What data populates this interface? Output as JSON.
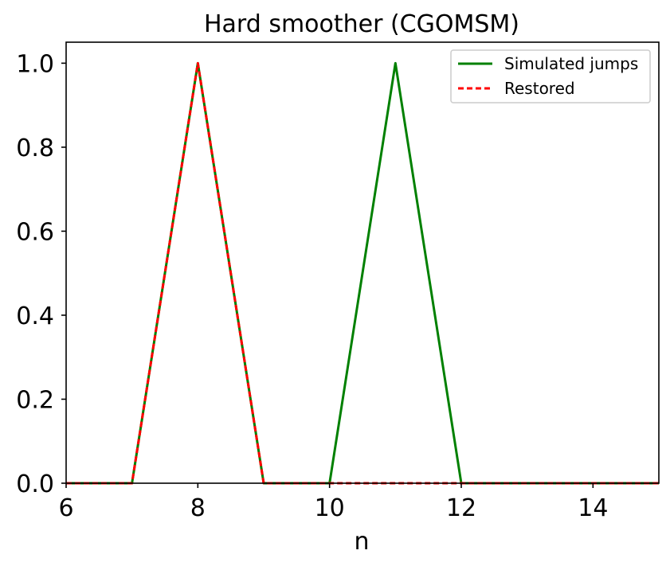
{
  "chart_data": {
    "type": "line",
    "title": "Hard smoother (CGOMSM)",
    "xlabel": "n",
    "ylabel": "",
    "xlim": [
      6,
      15
    ],
    "ylim": [
      0,
      1.05
    ],
    "xticks": [
      6,
      8,
      10,
      12,
      14
    ],
    "yticks": [
      0.0,
      0.2,
      0.4,
      0.6,
      0.8,
      1.0
    ],
    "xtick_labels": [
      "6",
      "8",
      "10",
      "12",
      "14"
    ],
    "ytick_labels": [
      "0.0",
      "0.2",
      "0.4",
      "0.6",
      "0.8",
      "1.0"
    ],
    "grid": false,
    "legend_position": "top-right",
    "x": [
      6,
      7,
      8,
      9,
      10,
      11,
      12,
      13,
      14,
      15
    ],
    "series": [
      {
        "name": "Simulated jumps",
        "values": [
          0,
          0,
          1,
          0,
          0,
          1,
          0,
          0,
          0,
          0
        ],
        "color": "#008000",
        "style": "solid"
      },
      {
        "name": "Restored",
        "values": [
          0,
          0,
          1,
          0,
          0,
          0,
          0,
          0,
          0,
          0
        ],
        "color": "#ff0000",
        "style": "dashed"
      }
    ]
  }
}
